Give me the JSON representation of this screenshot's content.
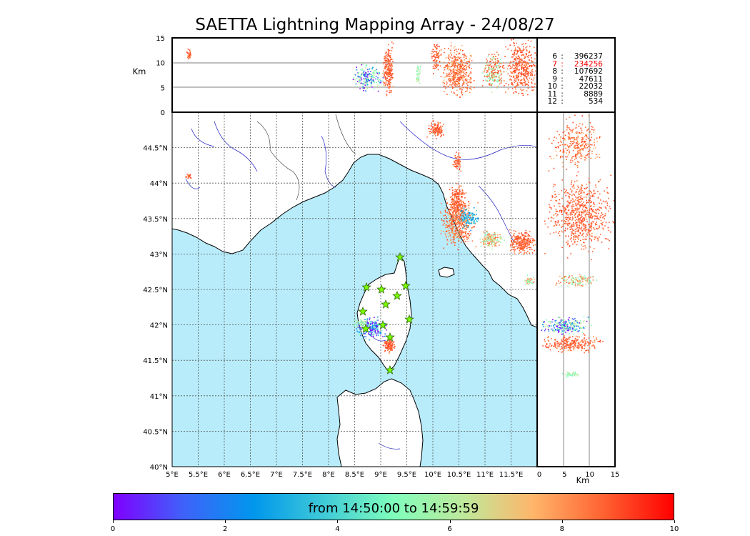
{
  "title": "SAETTA Lightning Mapping Array - 24/08/27",
  "top_panel": {
    "ylabel": "Km",
    "yticks": [
      "15",
      "10",
      "5",
      "0"
    ]
  },
  "right_panel": {
    "xlabel": "Km",
    "xticks": [
      "0",
      "5",
      "10",
      "15"
    ]
  },
  "stats": [
    {
      "level": "6",
      "count": "396237",
      "color": "#000000"
    },
    {
      "level": "7",
      "count": "234256",
      "color": "#ff0000"
    },
    {
      "level": "8",
      "count": "107692",
      "color": "#000000"
    },
    {
      "level": "9",
      "count": "47611",
      "color": "#000000"
    },
    {
      "level": "10",
      "count": "22032",
      "color": "#000000"
    },
    {
      "level": "11",
      "count": "8889",
      "color": "#000000"
    },
    {
      "level": "12",
      "count": "534",
      "color": "#000000"
    }
  ],
  "map": {
    "lon_labels": [
      "5°E",
      "5.5°E",
      "6°E",
      "6.5°E",
      "7°E",
      "7.5°E",
      "8°E",
      "8.5°E",
      "9°E",
      "9.5°E",
      "10°E",
      "10.5°E",
      "11°E",
      "11.5°E"
    ],
    "lat_labels": [
      "44.5°N",
      "44°N",
      "43.5°N",
      "43°N",
      "42.5°N",
      "42°N",
      "41.5°N",
      "41°N",
      "40.5°N",
      "40°N"
    ],
    "sea_color": "#b8ecfa",
    "land_color": "#ffffff"
  },
  "colorbar": {
    "label": "from 14:50:00 to 14:59:59",
    "ticks": [
      "0",
      "2",
      "4",
      "6",
      "8",
      "10"
    ],
    "colors": [
      "#7f00ff",
      "#0097ec",
      "#7ffebc",
      "#ffb56a",
      "#ff0000"
    ]
  }
}
